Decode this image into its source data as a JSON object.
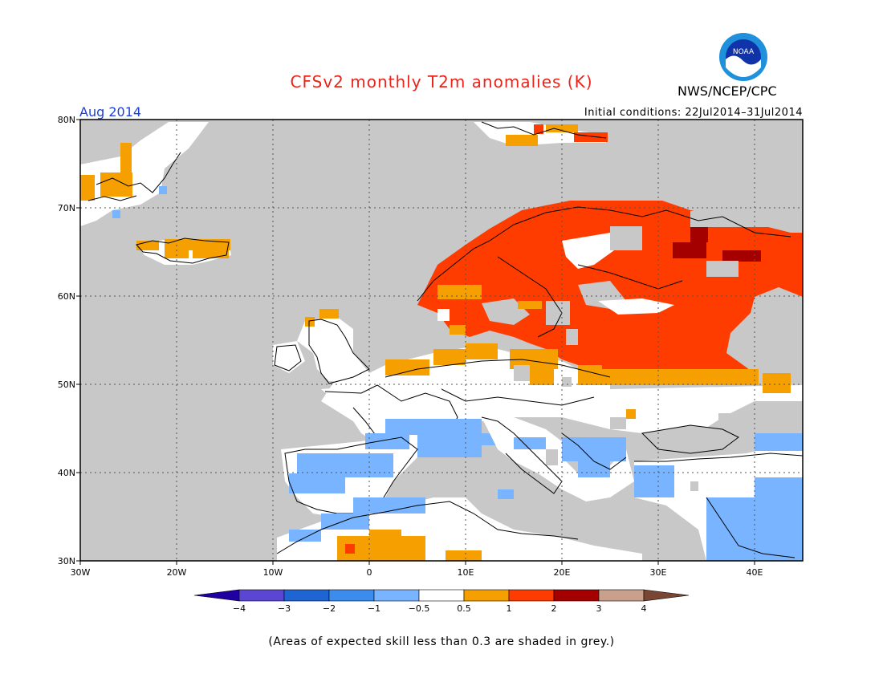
{
  "header": {
    "title": "CFSv2 monthly T2m anomalies (K)",
    "agency": "NWS/NCEP/CPC",
    "logo_text": "NOAA",
    "period": "Aug 2014",
    "initial_conditions": "Initial conditions: 22Jul2014–31Jul2014"
  },
  "map": {
    "lon_range": [
      -30,
      45
    ],
    "lat_range": [
      30,
      80
    ],
    "lat_ticks": [
      {
        "value": 80,
        "label": "80N"
      },
      {
        "value": 70,
        "label": "70N"
      },
      {
        "value": 60,
        "label": "60N"
      },
      {
        "value": 50,
        "label": "50N"
      },
      {
        "value": 40,
        "label": "40N"
      },
      {
        "value": 30,
        "label": "30N"
      }
    ],
    "lon_ticks": [
      {
        "value": -30,
        "label": "30W"
      },
      {
        "value": -20,
        "label": "20W"
      },
      {
        "value": -10,
        "label": "10W"
      },
      {
        "value": 0,
        "label": "0"
      },
      {
        "value": 10,
        "label": "10E"
      },
      {
        "value": 20,
        "label": "20E"
      },
      {
        "value": 30,
        "label": "30E"
      },
      {
        "value": 40,
        "label": "40E"
      }
    ],
    "grid": true,
    "low_skill_color": "#c8c8c8",
    "regions": [
      {
        "name": "Scandinavia",
        "category": "1 to 2",
        "color": "#ff3c00"
      },
      {
        "name": "Russia",
        "category": "1 to 2",
        "color": "#ff3c00"
      },
      {
        "name": "NW Russia core",
        "category": "2 to 3",
        "color": "#a50000"
      },
      {
        "name": "Poland band",
        "category": "0.5 to 1",
        "color": "#f5a000"
      },
      {
        "name": "Iceland",
        "category": "0.5 to 1",
        "color": "#f5a000"
      },
      {
        "name": "Iberia",
        "category": "-1 to -0.5",
        "color": "#78b4ff"
      },
      {
        "name": "Balkans",
        "category": "-1 to -0.5",
        "color": "#78b4ff"
      },
      {
        "name": "Middle East",
        "category": "-1 to -0.5",
        "color": "#78b4ff"
      },
      {
        "name": "Algeria",
        "category": "0.5 to 1",
        "color": "#f5a000"
      }
    ]
  },
  "colorbar": {
    "colors": [
      "#2000a0",
      "#5a46d2",
      "#1e64d2",
      "#3c8cf0",
      "#78b4ff",
      "#ffffff",
      "#f5a000",
      "#ff3c00",
      "#a50000",
      "#c8a08c",
      "#784632"
    ],
    "labels": [
      "−4",
      "−3",
      "−2",
      "−1",
      "−0.5",
      "0.5",
      "1",
      "2",
      "3",
      "4"
    ]
  },
  "footnote": "(Areas of expected skill less than 0.3 are shaded in grey.)"
}
